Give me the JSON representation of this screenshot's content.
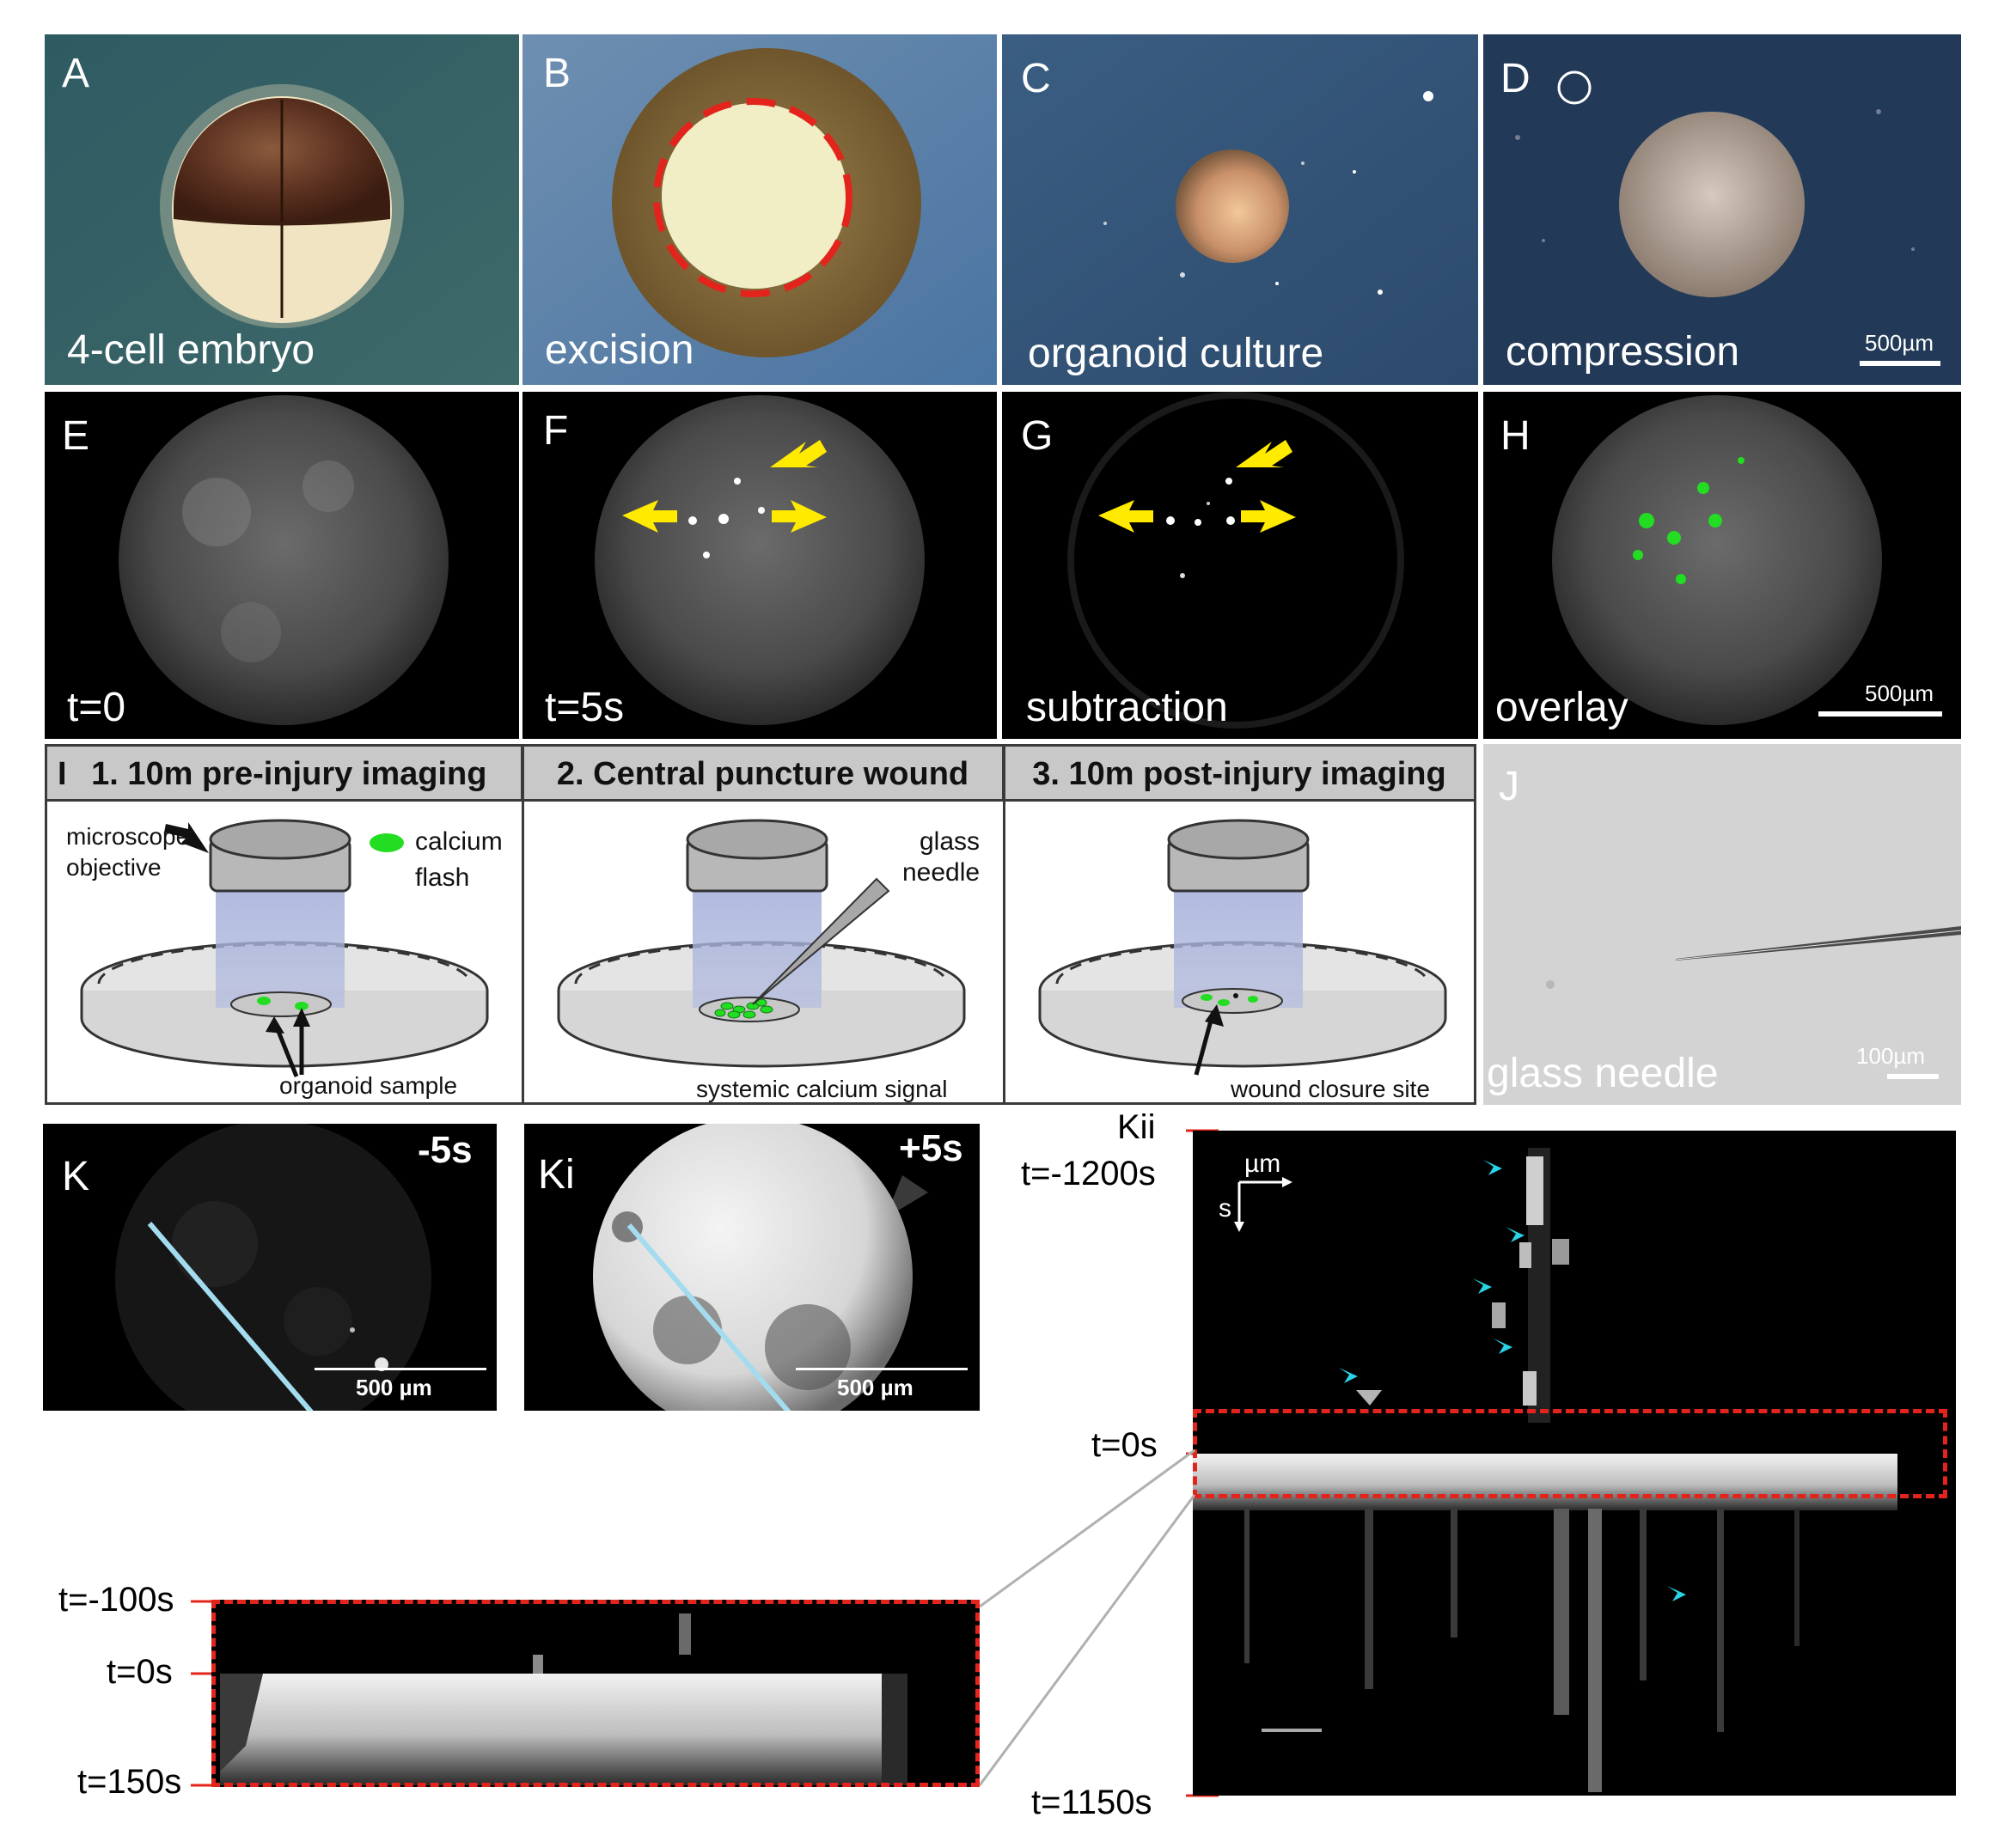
{
  "top_row": {
    "A": {
      "letter": "A",
      "caption": "4-cell embryo"
    },
    "B": {
      "letter": "B",
      "caption": "excision"
    },
    "C": {
      "letter": "C",
      "caption": "organoid culture"
    },
    "D": {
      "letter": "D",
      "caption": "compression",
      "scale": "500µm"
    }
  },
  "middle_row": {
    "E": {
      "letter": "E",
      "caption": "t=0"
    },
    "F": {
      "letter": "F",
      "caption": "t=5s"
    },
    "G": {
      "letter": "G",
      "caption": "subtraction"
    },
    "H": {
      "letter": "H",
      "caption": "overlay",
      "scale": "500µm"
    }
  },
  "protocol": {
    "letter": "I",
    "steps": [
      {
        "title": "1. 10m pre-injury imaging",
        "labels": [
          "microscope",
          "objective",
          "calcium",
          "flash",
          "organoid sample"
        ]
      },
      {
        "title": "2. Central puncture wound",
        "labels": [
          "glass",
          "needle",
          "systemic calcium signal"
        ]
      },
      {
        "title": "3. 10m post-injury imaging",
        "labels": [
          "wound closure site"
        ]
      }
    ]
  },
  "J": {
    "letter": "J",
    "caption": "glass needle",
    "scale": "100µm"
  },
  "K": {
    "letter": "K",
    "time": "-5s",
    "scale": "500 µm"
  },
  "Ki": {
    "letter": "Ki",
    "time": "+5s",
    "scale": "500 µm"
  },
  "Kii": {
    "letter": "Kii",
    "t_top": "t=-1200s",
    "t_zero": "t=0s",
    "t_bottom": "t=1150s",
    "axis_x": "µm",
    "axis_y": "s"
  },
  "zoom": {
    "t_top": "t=-100s",
    "t_zero": "t=0s",
    "t_bottom": "t=150s"
  },
  "colors": {
    "accent_red": "#e3241c",
    "arrow_yellow": "#ffea00",
    "arrow_cyan": "#28d3e6",
    "flash_green": "#22dd22"
  }
}
